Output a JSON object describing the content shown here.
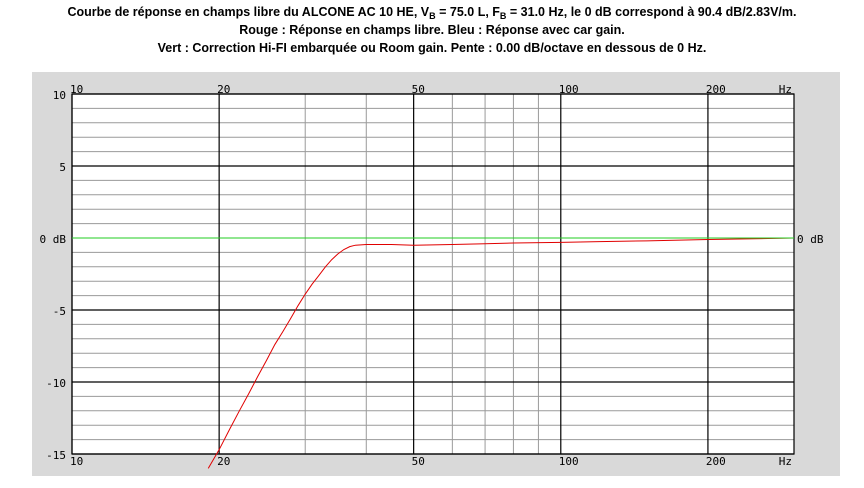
{
  "header": {
    "line1_a": "Courbe de réponse en champs libre du ALCONE AC 10 HE, V",
    "line1_sub_b": "B",
    "line1_b": " = 75.0 L, F",
    "line1_sub_c": "B",
    "line1_c": " = 31.0 Hz, le 0 dB correspond à 90.4 dB/2.83V/m.",
    "line2": "Rouge : Réponse en champs libre. Bleu : Réponse avec car gain.",
    "line3": "Vert : Correction Hi-FI embarquée ou Room gain. Pente : 0.00 dB/octave en dessous de 0 Hz."
  },
  "chart_data": {
    "type": "line",
    "x_scale": "log",
    "xlim": [
      10,
      300
    ],
    "ylim": [
      -15,
      10
    ],
    "x_ticks": [
      {
        "value": 10,
        "label": "10"
      },
      {
        "value": 20,
        "label": "20"
      },
      {
        "value": 50,
        "label": "50"
      },
      {
        "value": 100,
        "label": "100"
      },
      {
        "value": 200,
        "label": "200"
      }
    ],
    "x_unit_label": "Hz",
    "y_ticks": [
      {
        "value": 10,
        "label": "10"
      },
      {
        "value": 5,
        "label": "5"
      },
      {
        "value": 0,
        "label": "0 dB"
      },
      {
        "value": -5,
        "label": "-5"
      },
      {
        "value": -10,
        "label": "-10"
      },
      {
        "value": -15,
        "label": "-15"
      }
    ],
    "y_right_label": "0 dB",
    "grid": true,
    "series": [
      {
        "color": "#e00000",
        "x": [
          19,
          20,
          21,
          22,
          23,
          24,
          25,
          26,
          27,
          28,
          29,
          30,
          31,
          32,
          33,
          34,
          35,
          36,
          37,
          38,
          40,
          45,
          50,
          60,
          70,
          80,
          100,
          120,
          150,
          200,
          250,
          300
        ],
        "y": [
          -16.0,
          -14.7,
          -13.3,
          -12.0,
          -10.8,
          -9.6,
          -8.5,
          -7.4,
          -6.5,
          -5.6,
          -4.7,
          -3.9,
          -3.2,
          -2.6,
          -2.0,
          -1.5,
          -1.1,
          -0.8,
          -0.6,
          -0.5,
          -0.45,
          -0.45,
          -0.5,
          -0.45,
          -0.4,
          -0.35,
          -0.3,
          -0.25,
          -0.2,
          -0.1,
          -0.05,
          0.0
        ]
      },
      {
        "color": "#22cc22",
        "x": [
          10,
          300
        ],
        "y": [
          0,
          0
        ]
      }
    ]
  }
}
